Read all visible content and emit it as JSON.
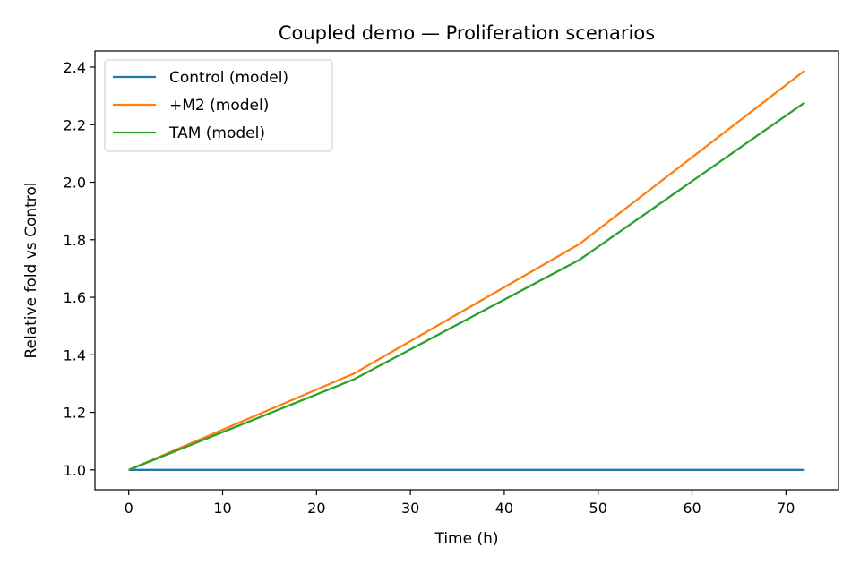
{
  "chart_data": {
    "type": "line",
    "title": "Coupled demo — Proliferation scenarios",
    "xlabel": "Time (h)",
    "ylabel": "Relative fold vs Control",
    "xlim": [
      -3.6,
      75.6
    ],
    "ylim": [
      0.931,
      2.456
    ],
    "xticks": [
      0,
      10,
      20,
      30,
      40,
      50,
      60,
      70
    ],
    "xtick_labels": [
      "0",
      "10",
      "20",
      "30",
      "40",
      "50",
      "60",
      "70"
    ],
    "yticks": [
      1.0,
      1.2,
      1.4,
      1.6,
      1.8,
      2.0,
      2.2,
      2.4
    ],
    "ytick_labels": [
      "1.0",
      "1.2",
      "1.4",
      "1.6",
      "1.8",
      "2.0",
      "2.2",
      "2.4"
    ],
    "grid": false,
    "legend_position": "upper-left",
    "series": [
      {
        "name": "Control (model)",
        "color": "#1f77b4",
        "x": [
          0,
          24,
          48,
          72
        ],
        "y": [
          1.0,
          1.0,
          1.0,
          1.0
        ]
      },
      {
        "name": "+M2 (model)",
        "color": "#ff7f0e",
        "x": [
          0,
          24,
          48,
          72
        ],
        "y": [
          1.0,
          1.335,
          1.785,
          2.388
        ]
      },
      {
        "name": "TAM (model)",
        "color": "#2ca02c",
        "x": [
          0,
          24,
          48,
          72
        ],
        "y": [
          1.0,
          1.315,
          1.73,
          2.277
        ]
      }
    ]
  }
}
